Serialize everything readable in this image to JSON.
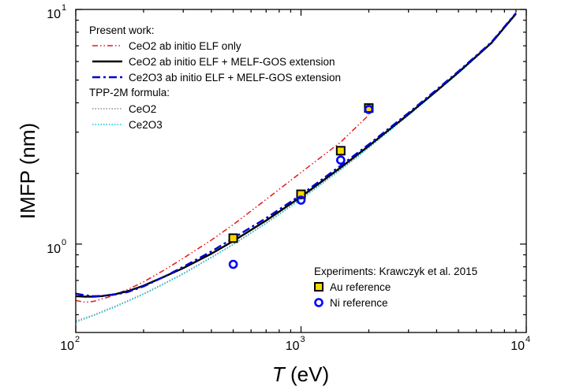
{
  "chart_data": {
    "type": "line",
    "xlabel_italic": "T",
    "xlabel_unit": " (eV)",
    "ylabel": "IMFP (nm)",
    "xscale": "log",
    "yscale": "log",
    "xlim": [
      100,
      10000
    ],
    "ylim": [
      0.42,
      10
    ],
    "grid": false,
    "x_ticks": [
      {
        "base": "10",
        "exp": "2"
      },
      {
        "base": "10",
        "exp": "3"
      },
      {
        "base": "10",
        "exp": "4"
      }
    ],
    "y_ticks": [
      {
        "base": "10",
        "exp": "0"
      },
      {
        "base": "10",
        "exp": "1"
      }
    ],
    "legend_top": {
      "heading1": "Present work:",
      "heading2": "TPP-2M formula:",
      "placement": "top-left"
    },
    "legend_bottom": {
      "heading": "Experiments: Krawczyk et al. 2015",
      "placement": "bottom-right"
    },
    "series": [
      {
        "name": "CeO2 ab initio ELF only",
        "color": "#e41a1c",
        "style": "dashdotdot",
        "x": [
          100,
          110,
          120,
          140,
          170,
          200,
          250,
          300,
          400,
          500,
          700,
          1000,
          1500,
          2000
        ],
        "y": [
          0.575,
          0.565,
          0.57,
          0.595,
          0.64,
          0.69,
          0.78,
          0.87,
          1.04,
          1.21,
          1.55,
          2.02,
          2.72,
          3.55
        ]
      },
      {
        "name": "CeO2 ab initio ELF + MELF-GOS extension",
        "color": "#000000",
        "style": "solid",
        "x": [
          100,
          110,
          120,
          130,
          150,
          170,
          200,
          250,
          300,
          400,
          500,
          700,
          1000,
          1500,
          2000,
          3000,
          4000,
          5000,
          7000,
          9000
        ],
        "y": [
          0.6,
          0.597,
          0.597,
          0.6,
          0.612,
          0.63,
          0.665,
          0.73,
          0.79,
          0.91,
          1.03,
          1.26,
          1.59,
          2.12,
          2.62,
          3.58,
          4.5,
          5.4,
          7.2,
          9.6
        ]
      },
      {
        "name": "Ce2O3 ab initio ELF + MELF-GOS extension",
        "color": "#0000cd",
        "style": "dashdot",
        "x": [
          100,
          110,
          120,
          130,
          150,
          170,
          200,
          250,
          300,
          400,
          500,
          700,
          1000,
          1500,
          2000,
          3000,
          4000,
          5000,
          7000,
          9000
        ],
        "y": [
          0.615,
          0.605,
          0.6,
          0.601,
          0.61,
          0.625,
          0.66,
          0.73,
          0.8,
          0.93,
          1.06,
          1.29,
          1.62,
          2.16,
          2.66,
          3.62,
          4.55,
          5.45,
          7.25,
          9.65
        ]
      },
      {
        "name": "CeO2",
        "color": "#909090",
        "style": "dotted",
        "x": [
          100,
          120,
          150,
          200,
          250,
          300,
          400,
          500,
          700,
          1000,
          1500,
          2000,
          3000,
          5000,
          7000,
          9000
        ],
        "y": [
          0.47,
          0.5,
          0.545,
          0.615,
          0.685,
          0.75,
          0.88,
          1.0,
          1.23,
          1.56,
          2.08,
          2.58,
          3.54,
          5.35,
          7.15,
          9.5
        ]
      },
      {
        "name": "Ce2O3",
        "color": "#00c8e6",
        "style": "dotted",
        "x": [
          100,
          120,
          150,
          200,
          250,
          300,
          400,
          500,
          700,
          1000,
          1500,
          2000,
          3000,
          5000,
          7000,
          9000
        ],
        "y": [
          0.465,
          0.495,
          0.54,
          0.61,
          0.68,
          0.745,
          0.875,
          0.995,
          1.225,
          1.55,
          2.07,
          2.57,
          3.53,
          5.34,
          7.14,
          9.49
        ]
      }
    ],
    "scatter": [
      {
        "name": "Au reference",
        "marker": "square",
        "fill": "#ffd700",
        "edge": "#000000",
        "x": [
          500,
          1000,
          1500,
          2000
        ],
        "y": [
          1.06,
          1.63,
          2.5,
          3.8
        ]
      },
      {
        "name": "Ni reference",
        "marker": "ring",
        "fill": "none",
        "edge": "#0000ff",
        "x": [
          500,
          1000,
          1500,
          2000
        ],
        "y": [
          0.82,
          1.54,
          2.28,
          3.75
        ]
      }
    ]
  }
}
